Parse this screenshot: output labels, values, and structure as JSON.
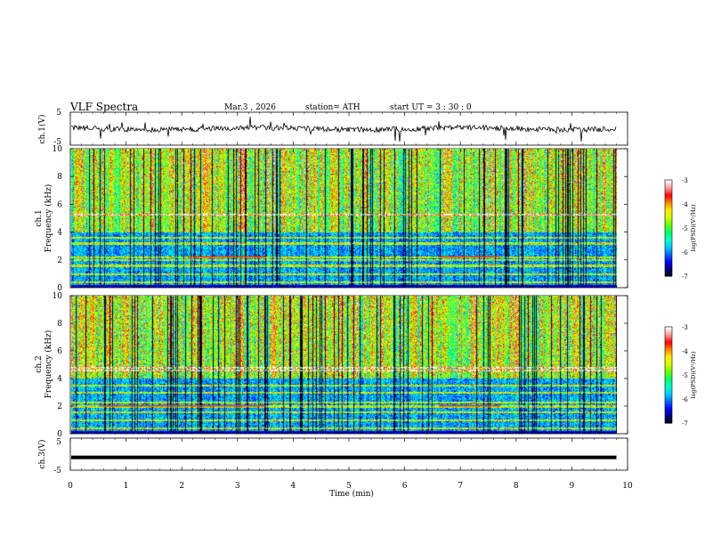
{
  "header": {
    "title": "VLF  Spectra",
    "date": "Mar.3  , 2026",
    "station": "station= ATH",
    "start": "start  UT  =    3  : 30 : 0"
  },
  "chart_data": [
    {
      "type": "line",
      "name": "ch1-waveform",
      "ylabel": "ch.1(V)",
      "ylim": [
        -5,
        5
      ],
      "yticks": [
        "5",
        "-5"
      ],
      "xlim": [
        0,
        10
      ],
      "baseline_value": 0,
      "note": "noisy broadband waveform near 0 V with impulsive spikes"
    },
    {
      "type": "heatmap",
      "name": "ch1-spectrogram",
      "ylabel": "ch.1\nFrequency  (kHz)",
      "ylabel_lines": [
        "ch.1",
        "Frequency  (kHz)"
      ],
      "ylim": [
        0,
        10
      ],
      "yticks": [
        "0",
        "2",
        "4",
        "6",
        "8",
        "10"
      ],
      "xlim": [
        0,
        9.8
      ],
      "colorbar": {
        "label": "log(PSD)(V²/Hz)",
        "min": -7,
        "max": -3,
        "ticks": [
          "-3",
          "-4",
          "-5",
          "-6",
          "-7"
        ]
      },
      "bands_khz": [
        0.4,
        1.0,
        1.6,
        2.0,
        2.2,
        3.2,
        3.6,
        5.3
      ],
      "fragments": [
        {
          "f_khz": 2.2,
          "t_min": [
            2.1,
            3.5
          ]
        },
        {
          "f_khz": 2.2,
          "t_min": [
            6.6,
            7.7
          ]
        }
      ]
    },
    {
      "type": "heatmap",
      "name": "ch2-spectrogram",
      "ylabel": "ch.2\nFrequency  (kHz)",
      "ylabel_lines": [
        "ch.2",
        "Frequency  (kHz)"
      ],
      "ylim": [
        0,
        10
      ],
      "yticks": [
        "0",
        "2",
        "4",
        "6",
        "8",
        "10"
      ],
      "xlim": [
        0,
        9.8
      ],
      "colorbar": {
        "label": "log(PSD)(V²/Hz)",
        "min": -7,
        "max": -3,
        "ticks": [
          "-3",
          "-4",
          "-5",
          "-6",
          "-7"
        ]
      },
      "bands_khz": [
        0.4,
        1.0,
        1.6,
        2.0,
        2.3,
        3.0,
        3.5,
        4.6,
        4.8
      ],
      "fragments": [
        {
          "f_khz": 2.0,
          "t_min": [
            0.5,
            3.5
          ]
        },
        {
          "f_khz": 2.0,
          "t_min": [
            6.6,
            7.7
          ]
        }
      ]
    },
    {
      "type": "line",
      "name": "ch3-waveform",
      "ylabel": "ch.3(V)",
      "ylim": [
        -5,
        5
      ],
      "yticks": [
        "5",
        "-5"
      ],
      "xlim": [
        0,
        10
      ],
      "baseline_value": -1.0,
      "note": "flat thick trace"
    }
  ],
  "xaxis": {
    "label": "Time  (min)",
    "ticks": [
      "0",
      "1",
      "2",
      "3",
      "4",
      "5",
      "6",
      "7",
      "8",
      "9",
      "10"
    ],
    "range": [
      0,
      10
    ]
  },
  "colors": {
    "scale": [
      "#000000",
      "#000080",
      "#0000ff",
      "#0066ff",
      "#00ccff",
      "#00ffcc",
      "#00ff66",
      "#66ff00",
      "#ccff00",
      "#ffee00",
      "#ff8800",
      "#ff0000",
      "#ff9999",
      "#ffffff"
    ]
  }
}
